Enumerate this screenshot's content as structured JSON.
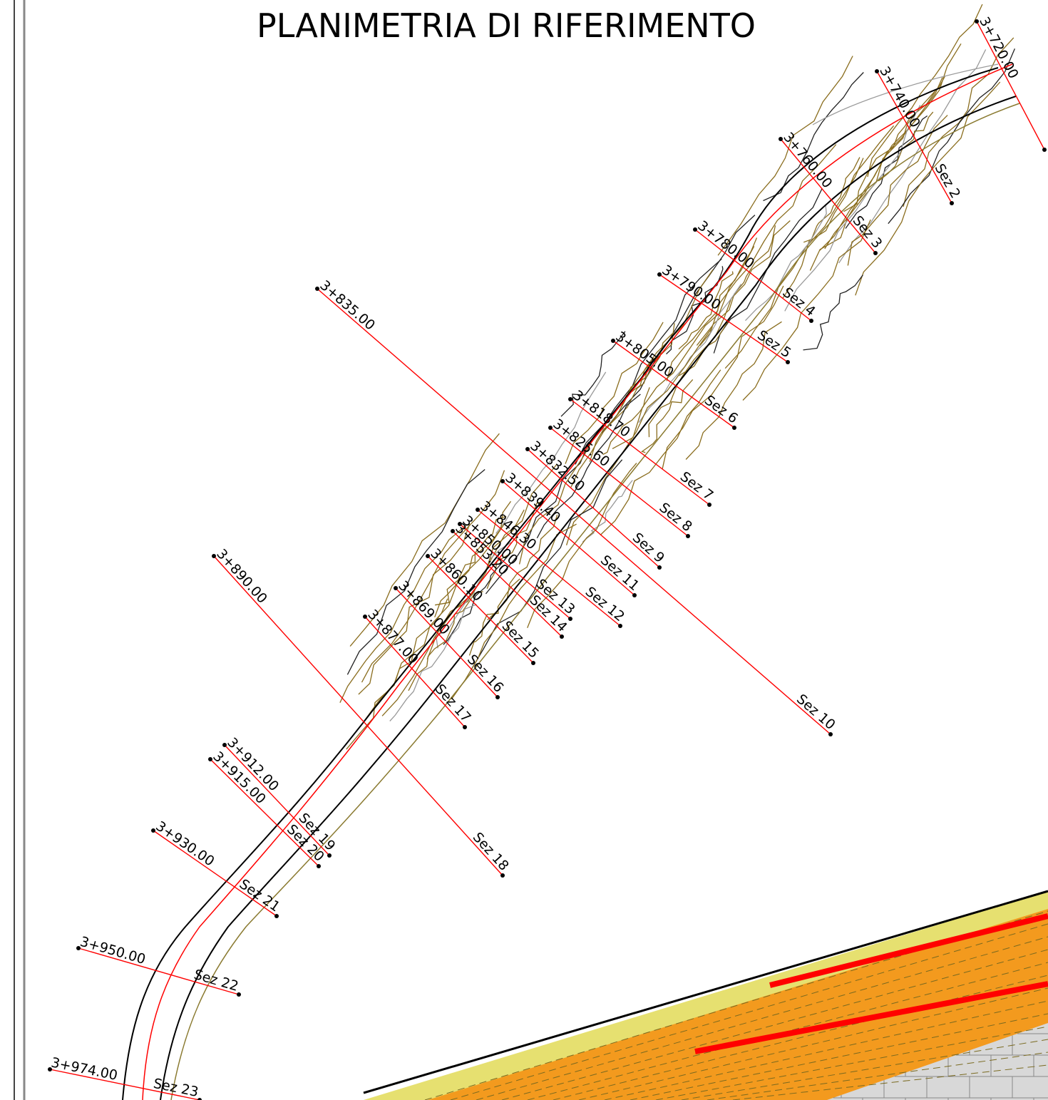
{
  "title": "PLANIMETRIA DI RIFERIMENTO",
  "sections": [
    {
      "station": "3+720.00"
    },
    {
      "station": "3+740.00",
      "label": "Sez 2"
    },
    {
      "station": "3+760.00",
      "label": "Sez 3"
    },
    {
      "station": "3+780.00",
      "label": "Sez 4"
    },
    {
      "station": "3+790.00",
      "label": "Sez 5"
    },
    {
      "station": "3+805.00",
      "label": "Sez 6"
    },
    {
      "station": "3+818.70",
      "label": "Sez 7"
    },
    {
      "station": "3+825.60",
      "label": "Sez 8"
    },
    {
      "station": "3+832.50",
      "label": "Sez 9"
    },
    {
      "station": "3+835.00",
      "label": "Sez 10"
    },
    {
      "station": "3+839.40",
      "label": "Sez 11"
    },
    {
      "station": "3+846.30",
      "label": "Sez 12"
    },
    {
      "station": "3+850.00",
      "label": "Sez 13"
    },
    {
      "station": "3+853.20",
      "label": "Sez 14"
    },
    {
      "station": "3+860.10",
      "label": "Sez 15"
    },
    {
      "station": "3+869.00",
      "label": "Sez 16"
    },
    {
      "station": "3+877.00",
      "label": "Sez 17"
    },
    {
      "station": "3+890.00",
      "label": "Sez 18"
    },
    {
      "station": "3+912.00",
      "label": "Sez 19"
    },
    {
      "station": "3+915.00",
      "label": "Sez 20"
    },
    {
      "station": "3+930.00",
      "label": "Sez 21"
    },
    {
      "station": "3+950.00",
      "label": "Sez 22"
    },
    {
      "station": "3+974.00",
      "label": "Sez 23"
    }
  ]
}
